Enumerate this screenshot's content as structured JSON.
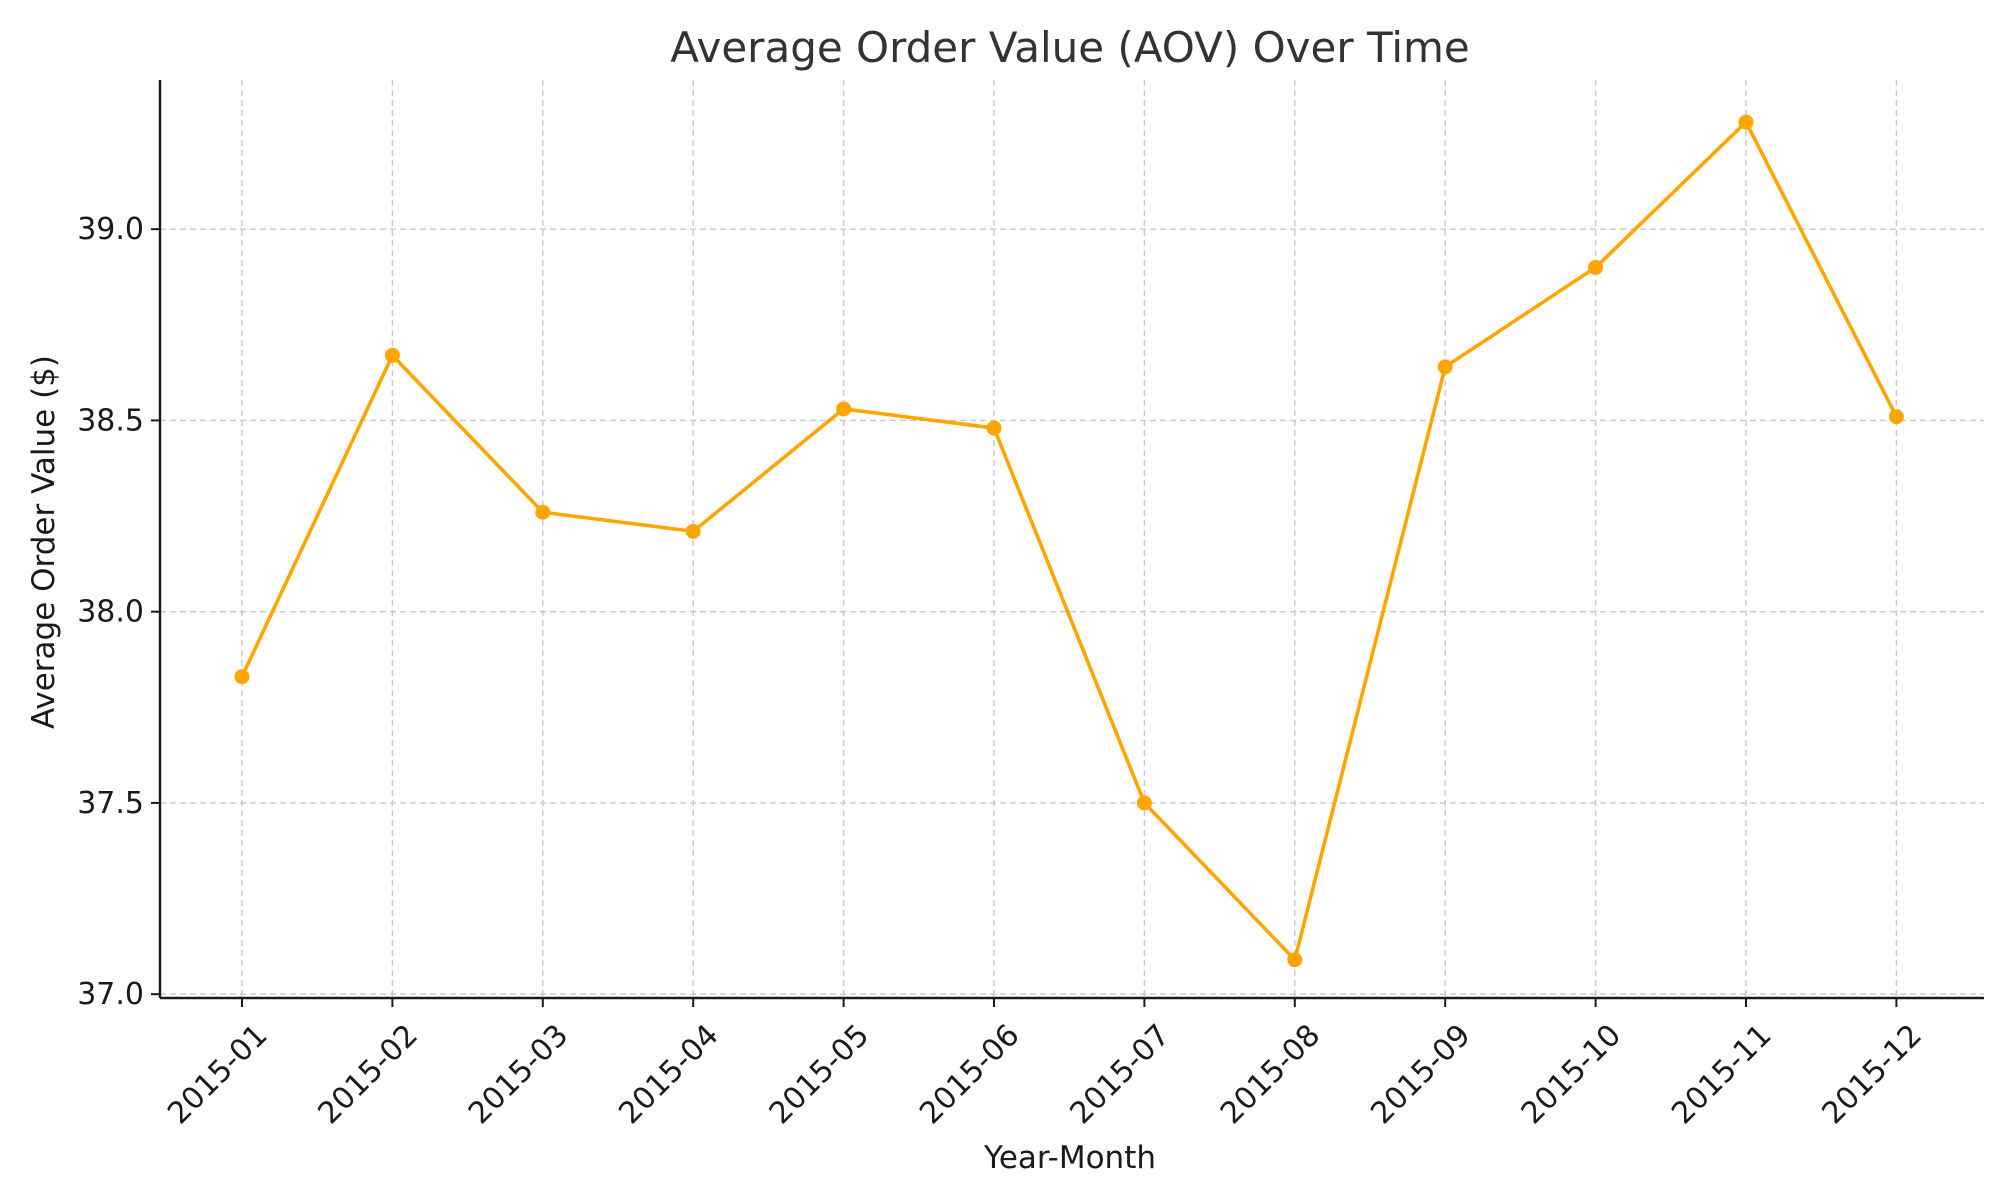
{
  "chart_data": {
    "type": "line",
    "title": "Average Order Value (AOV) Over Time",
    "xlabel": "Year-Month",
    "ylabel": "Average Order Value ($)",
    "categories": [
      "2015-01",
      "2015-02",
      "2015-03",
      "2015-04",
      "2015-05",
      "2015-06",
      "2015-07",
      "2015-08",
      "2015-09",
      "2015-10",
      "2015-11",
      "2015-12"
    ],
    "series": [
      {
        "values": [
          37.83,
          38.67,
          38.26,
          38.21,
          38.53,
          38.48,
          37.5,
          37.09,
          38.64,
          38.9,
          39.28,
          38.51
        ],
        "color": "#FFA500"
      }
    ],
    "yticks": [
      "37.0",
      "37.5",
      "38.0",
      "38.5",
      "39.0"
    ],
    "ylim": [
      36.99,
      39.39
    ],
    "grid": true,
    "legend": "none"
  }
}
